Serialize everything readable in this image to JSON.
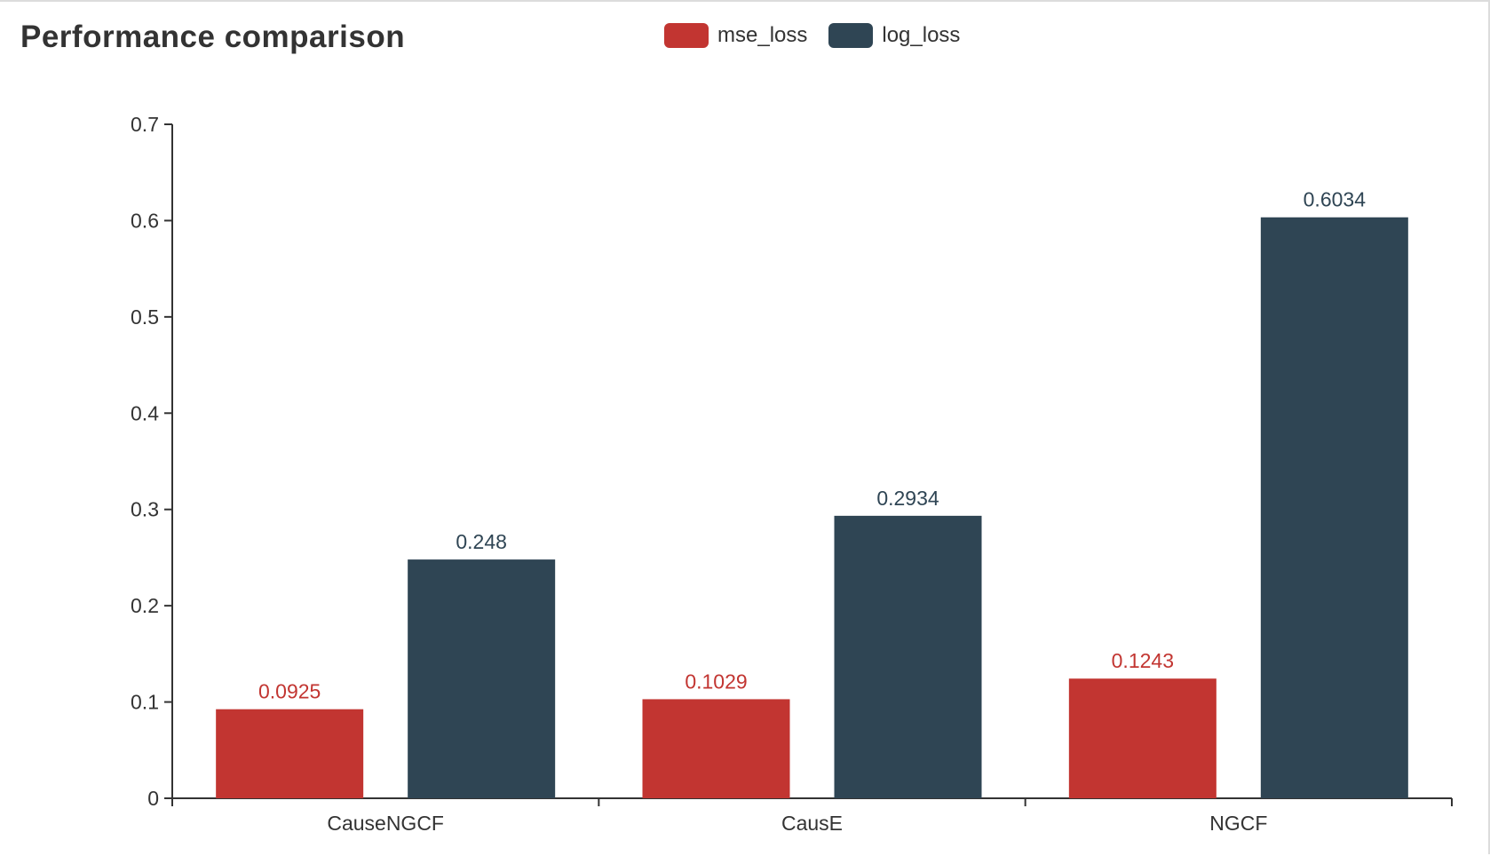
{
  "chart_data": {
    "type": "bar",
    "title": "Performance comparison",
    "xlabel": "",
    "ylabel": "",
    "categories": [
      "CauseNGCF",
      "CausE",
      "NGCF"
    ],
    "series": [
      {
        "name": "mse_loss",
        "color": "#c23531",
        "values": [
          0.0925,
          0.1029,
          0.1243
        ]
      },
      {
        "name": "log_loss",
        "color": "#2f4554",
        "values": [
          0.248,
          0.2934,
          0.6034
        ]
      }
    ],
    "value_labels": [
      [
        "0.0925",
        "0.1029",
        "0.1243"
      ],
      [
        "0.248",
        "0.2934",
        "0.6034"
      ]
    ],
    "ylim": [
      0,
      0.7
    ],
    "yticks": [
      0,
      0.1,
      0.2,
      0.3,
      0.4,
      0.5,
      0.6,
      0.7
    ],
    "ytick_labels": [
      "0",
      "0.1",
      "0.2",
      "0.3",
      "0.4",
      "0.5",
      "0.6",
      "0.7"
    ],
    "grid": false,
    "legend_position": "top-center"
  }
}
